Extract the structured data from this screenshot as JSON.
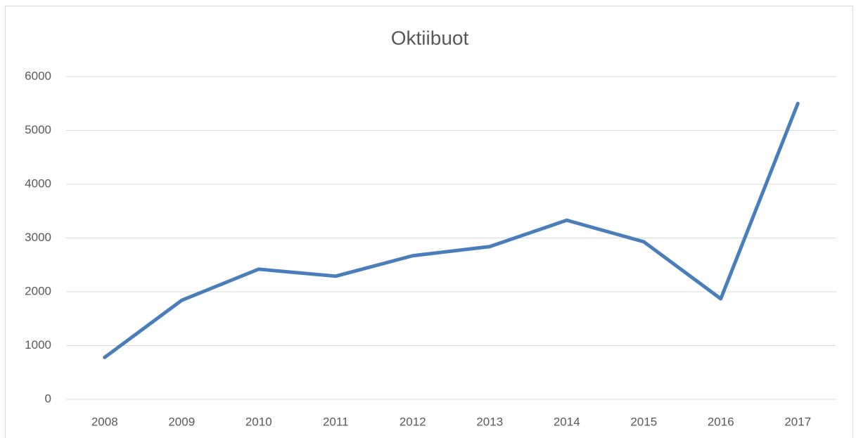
{
  "chart_data": {
    "type": "line",
    "title": "Oktiibuot",
    "categories": [
      "2008",
      "2009",
      "2010",
      "2011",
      "2012",
      "2013",
      "2014",
      "2015",
      "2016",
      "2017"
    ],
    "series": [
      {
        "name": "Oktiibuot",
        "color": "#4a7ebb",
        "values": [
          780,
          1840,
          2420,
          2290,
          2670,
          2840,
          3330,
          2930,
          1870,
          5500
        ]
      }
    ],
    "ylim": [
      0,
      6000
    ],
    "yticks": [
      0,
      1000,
      2000,
      3000,
      4000,
      5000,
      6000
    ],
    "grid": true
  }
}
